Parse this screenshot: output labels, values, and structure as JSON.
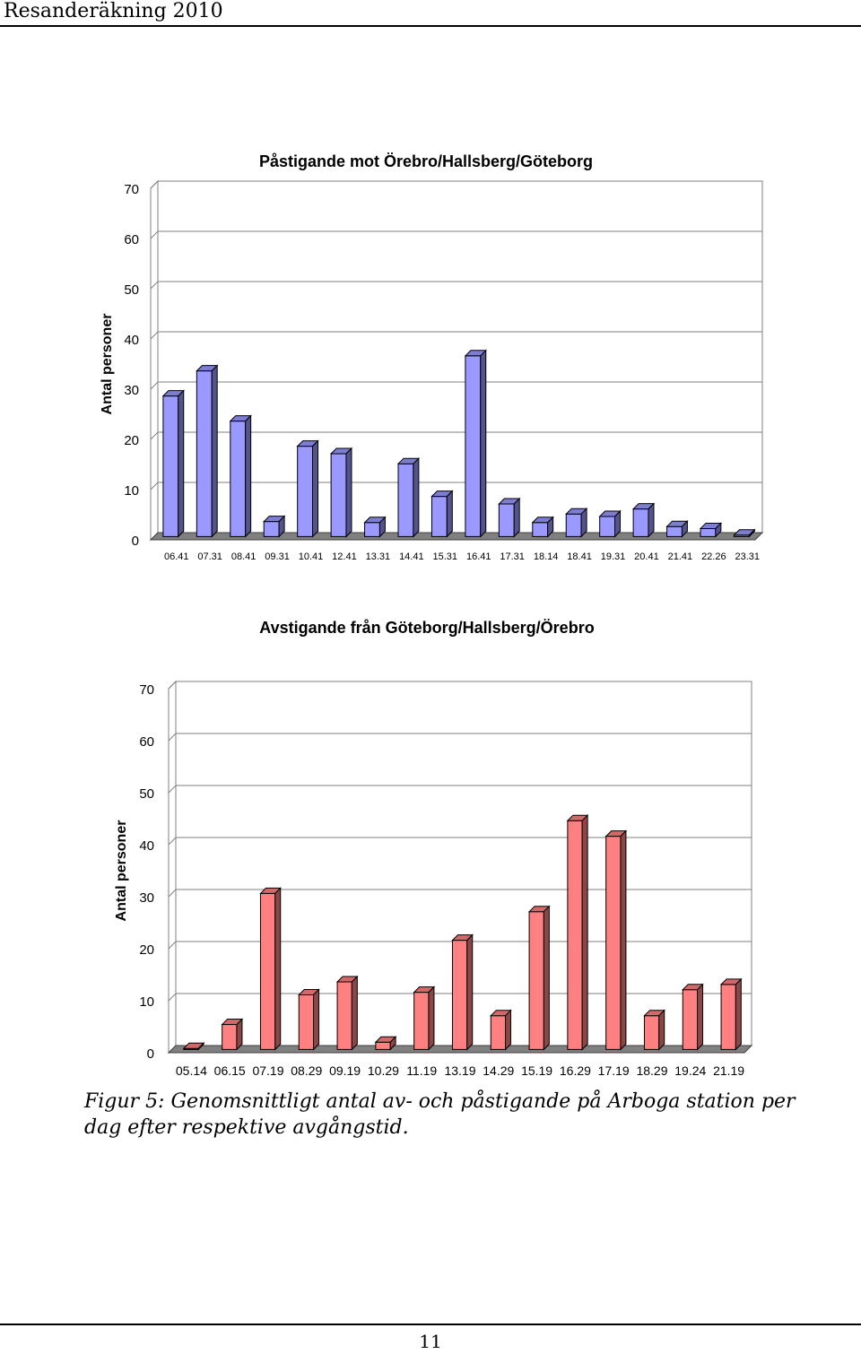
{
  "header": {
    "title": "Resanderäkning 2010"
  },
  "chart_data": [
    {
      "type": "bar",
      "title": "Påstigande mot Örebro/Hallsberg/Göteborg",
      "xlabel": "",
      "ylabel": "Antal personer",
      "ylim": [
        0,
        70
      ],
      "yticks": [
        0,
        10,
        20,
        30,
        40,
        50,
        60,
        70
      ],
      "grid": true,
      "categories": [
        "06.41",
        "07.31",
        "08.41",
        "09.31",
        "10.41",
        "12.41",
        "13.31",
        "14.41",
        "15.31",
        "16.41",
        "17.31",
        "18.14",
        "18.41",
        "19.31",
        "20.41",
        "21.41",
        "22.26",
        "23.31"
      ],
      "values": [
        28,
        33,
        23,
        3,
        18,
        16.5,
        2.8,
        14.5,
        8,
        36,
        6.5,
        2.8,
        4.5,
        4,
        5.5,
        2,
        1.6,
        0.3
      ],
      "bar_color": "#9999ff"
    },
    {
      "type": "bar",
      "title": "Avstigande från Göteborg/Hallsberg/Örebro",
      "xlabel": "",
      "ylabel": "Antal personer",
      "ylim": [
        0,
        70
      ],
      "yticks": [
        0,
        10,
        20,
        30,
        40,
        50,
        60,
        70
      ],
      "grid": true,
      "categories": [
        "05.14",
        "06.15",
        "07.19",
        "08.29",
        "09.19",
        "10.29",
        "11.19",
        "13.19",
        "14.29",
        "15.19",
        "16.29",
        "17.19",
        "18.29",
        "19.24",
        "21.19"
      ],
      "values": [
        0.2,
        4.8,
        30,
        10.5,
        13,
        1.4,
        11,
        21,
        6.5,
        26.5,
        44,
        41,
        6.5,
        11.5,
        12.5
      ],
      "bar_color": "#ff8080"
    }
  ],
  "caption": "Figur 5: Genomsnittligt antal av- och påstigande på Arboga station per dag efter respektive avgångstid.",
  "page_number": "11"
}
